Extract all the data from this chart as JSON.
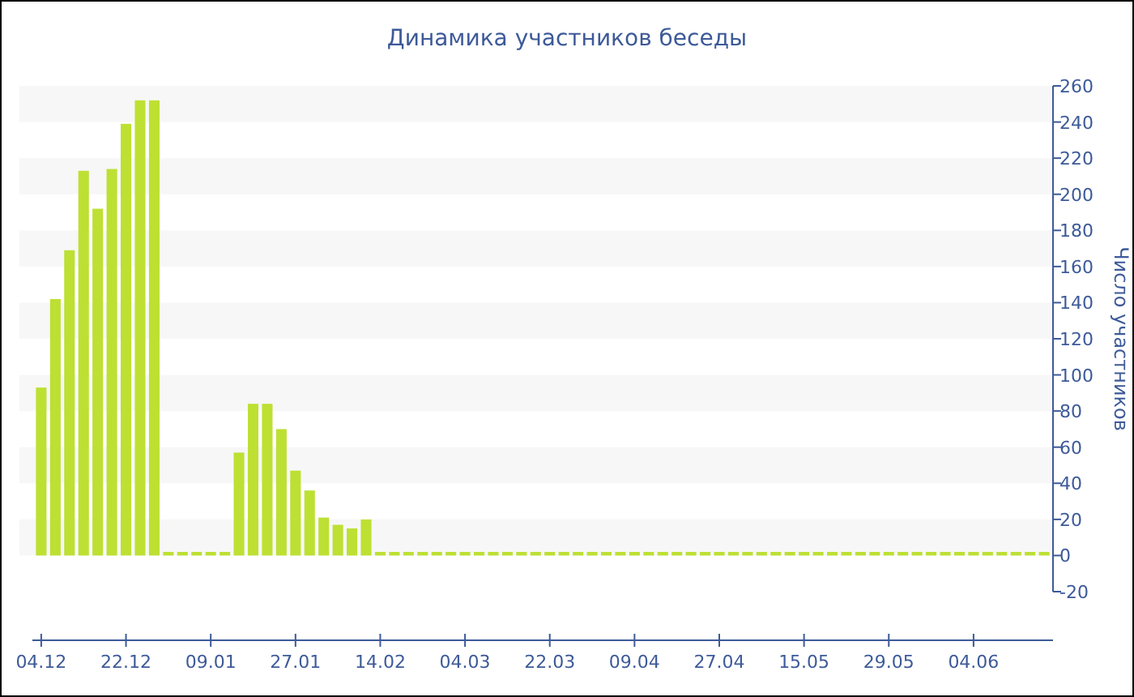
{
  "chart_data": {
    "type": "bar",
    "title": "Динамика участников беседы",
    "ylabel": "Число участников",
    "categories": [
      "04.12",
      null,
      null,
      null,
      null,
      null,
      "22.12",
      null,
      null,
      null,
      null,
      null,
      "09.01",
      null,
      null,
      null,
      null,
      null,
      "27.01",
      null,
      null,
      null,
      null,
      null,
      "14.02",
      null,
      null,
      null,
      null,
      null,
      "04.03",
      null,
      null,
      null,
      null,
      null,
      "22.03",
      null,
      null,
      null,
      null,
      null,
      "09.04",
      null,
      null,
      null,
      null,
      null,
      "27.04",
      null,
      null,
      null,
      null,
      null,
      "15.05",
      null,
      null,
      null,
      null,
      null,
      "29.05",
      null,
      null,
      null,
      null,
      null,
      "04.06",
      null,
      null,
      null,
      null,
      null
    ],
    "values": [
      93,
      142,
      169,
      213,
      192,
      214,
      239,
      252,
      252,
      2,
      2,
      2,
      2,
      2,
      57,
      84,
      84,
      70,
      47,
      36,
      21,
      17,
      15,
      20,
      2,
      2,
      2,
      2,
      2,
      2,
      2,
      2,
      2,
      2,
      2,
      2,
      2,
      2,
      2,
      2,
      2,
      2,
      2,
      2,
      2,
      2,
      2,
      2,
      2,
      2,
      2,
      2,
      2,
      2,
      2,
      2,
      2,
      2,
      2,
      2,
      2,
      2,
      2,
      2,
      2,
      2,
      2,
      2,
      2,
      2,
      2,
      2
    ],
    "color": "#bde033",
    "ylim": [
      -20,
      260
    ],
    "yticks": [
      -20,
      0,
      20,
      40,
      60,
      80,
      100,
      120,
      140,
      160,
      180,
      200,
      220,
      240,
      260
    ],
    "bands": [
      {
        "axis": "y",
        "from": 0,
        "to": 20,
        "color": "#f7f7f7"
      },
      {
        "axis": "y",
        "from": 40,
        "to": 60,
        "color": "#f7f7f7"
      },
      {
        "axis": "y",
        "from": 80,
        "to": 100,
        "color": "#f7f7f7"
      },
      {
        "axis": "y",
        "from": 120,
        "to": 140,
        "color": "#f7f7f7"
      },
      {
        "axis": "y",
        "from": 160,
        "to": 180,
        "color": "#f7f7f7"
      },
      {
        "axis": "y",
        "from": 200,
        "to": 220,
        "color": "#f7f7f7"
      },
      {
        "axis": "y",
        "from": 240,
        "to": 260,
        "color": "#f7f7f7"
      }
    ]
  }
}
